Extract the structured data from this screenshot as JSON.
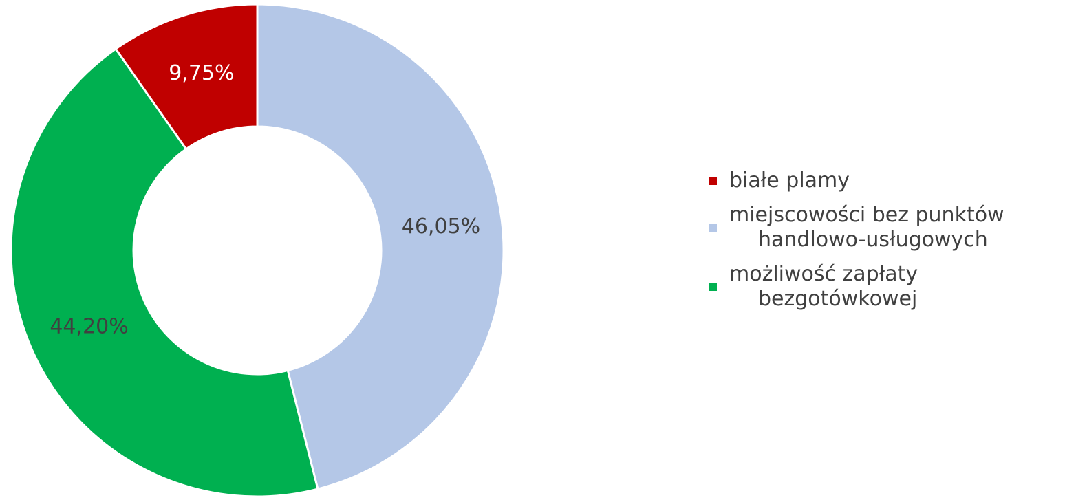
{
  "chart_data": {
    "type": "donut",
    "categories": [
      "białe plamy",
      "miejscowości bez punktów handlowo-usługowych",
      "możliwość zapłaty bezgotówkowej"
    ],
    "values": [
      9.75,
      46.05,
      44.2
    ],
    "value_labels": [
      "9,75%",
      "46,05%",
      "44,20%"
    ],
    "colors": [
      "#c00000",
      "#b4c7e7",
      "#00b050"
    ],
    "label_colors": [
      "#ffffff",
      "#404040",
      "#404040"
    ],
    "legend": "right"
  }
}
